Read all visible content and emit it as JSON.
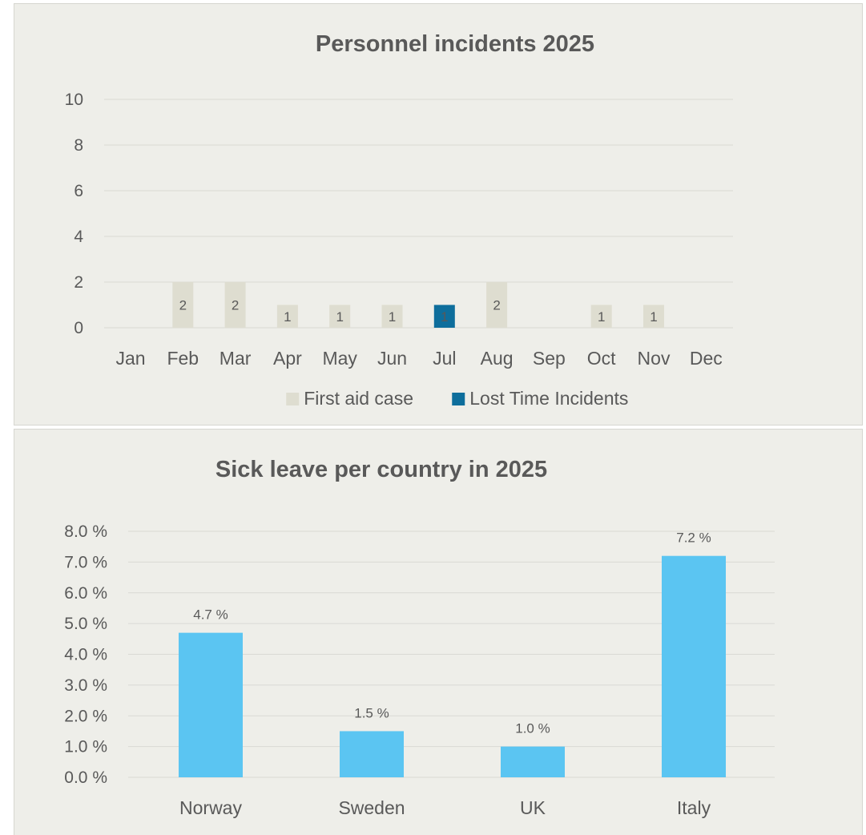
{
  "chart_data": [
    {
      "type": "bar",
      "title": "Personnel incidents 2025",
      "categories": [
        "Jan",
        "Feb",
        "Mar",
        "Apr",
        "May",
        "Jun",
        "Jul",
        "Aug",
        "Sep",
        "Oct",
        "Nov",
        "Dec"
      ],
      "series": [
        {
          "name": "First aid case",
          "color": "#deddd0",
          "values": [
            0,
            2,
            2,
            1,
            1,
            1,
            0,
            2,
            0,
            1,
            1,
            0
          ],
          "labels": [
            null,
            "2",
            "2",
            "1",
            "1",
            "1",
            null,
            "2",
            null,
            "1",
            "1",
            null
          ]
        },
        {
          "name": "Lost Time Incidents",
          "color": "#0e6e9c",
          "values": [
            0,
            0,
            0,
            0,
            0,
            0,
            1,
            0,
            0,
            0,
            0,
            0
          ],
          "labels": [
            null,
            null,
            null,
            null,
            null,
            null,
            "1",
            null,
            null,
            null,
            null,
            null
          ]
        }
      ],
      "ylim": [
        0,
        10
      ],
      "yticks": [
        "0",
        "2",
        "4",
        "6",
        "8",
        "10"
      ],
      "grid": true,
      "legend": "bottom"
    },
    {
      "type": "bar",
      "title": "Sick leave per country in 2025",
      "categories": [
        "Norway",
        "Sweden",
        "UK",
        "Italy"
      ],
      "series": [
        {
          "color": "#5bc5f2",
          "values": [
            4.7,
            1.5,
            1.0,
            7.2
          ],
          "labels": [
            "4.7 %",
            "1.5 %",
            "1.0 %",
            "7.2 %"
          ]
        }
      ],
      "ylim": [
        0,
        8
      ],
      "yticks": [
        "0.0 %",
        "1.0 %",
        "2.0 %",
        "3.0 %",
        "4.0 %",
        "5.0 %",
        "6.0 %",
        "7.0 %",
        "8.0 %"
      ],
      "grid": true,
      "legend": "none"
    }
  ]
}
